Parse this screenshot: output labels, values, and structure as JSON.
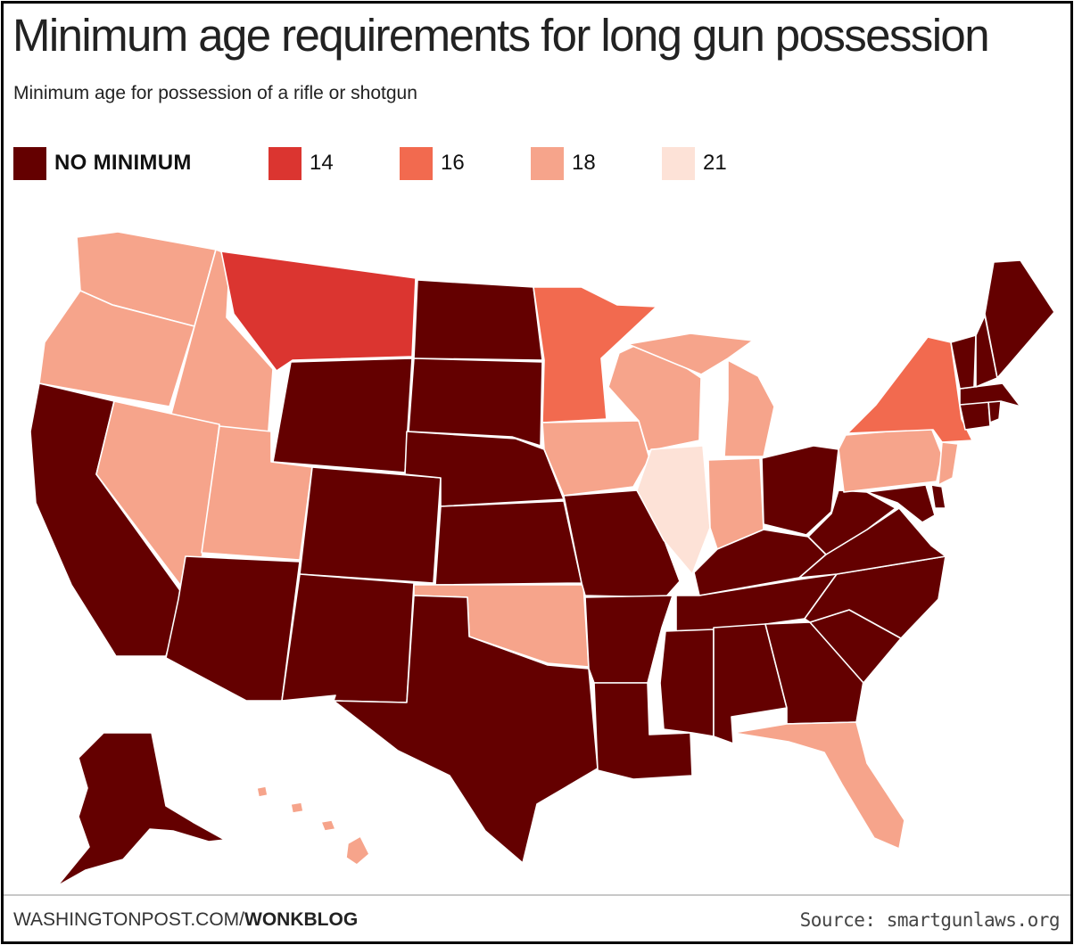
{
  "title": "Minimum age requirements for long gun possession",
  "subtitle": "Minimum age for possession of a rifle or shotgun",
  "legend": [
    {
      "label": "NO MINIMUM",
      "color": "#640000"
    },
    {
      "label": "14",
      "color": "#db3530"
    },
    {
      "label": "16",
      "color": "#f26a4f"
    },
    {
      "label": "18",
      "color": "#f6a48b"
    },
    {
      "label": "21",
      "color": "#fde2d7"
    }
  ],
  "colors": {
    "none": "#640000",
    "14": "#db3530",
    "16": "#f26a4f",
    "18": "#f6a48b",
    "21": "#fde2d7"
  },
  "states": {
    "washington": "18",
    "oregon": "18",
    "california": "none",
    "idaho": "18",
    "nevada": "18",
    "montana": "14",
    "wyoming": "none",
    "utah": "18",
    "arizona": "none",
    "colorado": "none",
    "new-mexico": "none",
    "north-dakota": "none",
    "south-dakota": "none",
    "nebraska": "none",
    "kansas": "none",
    "oklahoma": "18",
    "texas": "none",
    "minnesota": "16",
    "iowa": "18",
    "missouri": "none",
    "arkansas": "none",
    "louisiana": "none",
    "wisconsin": "18",
    "illinois": "21",
    "michigan": "18",
    "indiana": "18",
    "ohio": "none",
    "kentucky": "none",
    "tennessee": "none",
    "mississippi": "none",
    "alabama": "none",
    "georgia": "none",
    "florida": "18",
    "south-carolina": "none",
    "north-carolina": "none",
    "virginia": "none",
    "west-virginia": "none",
    "pennsylvania": "18",
    "new-york": "16",
    "new-jersey": "18",
    "maryland": "none",
    "delaware": "none",
    "connecticut": "none",
    "rhode-island": "none",
    "massachusetts": "none",
    "vermont": "none",
    "new-hampshire": "none",
    "maine": "none",
    "alaska": "none",
    "hawaii": "18"
  },
  "footer": {
    "site": "WASHINGTONPOST.COM/",
    "section": "WONKBLOG",
    "source": "Source: smartgunlaws.org"
  }
}
